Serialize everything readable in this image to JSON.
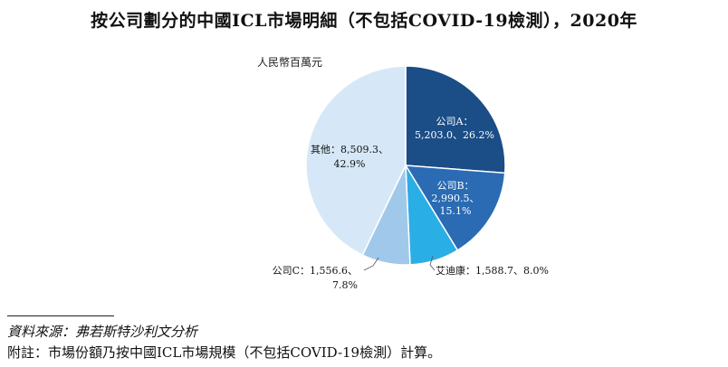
{
  "title": "按公司劃分的中國ICL市場明細（不包括COVID-19檢測），2020年",
  "unit_label": "人民幣百萬元",
  "source_note": "資料來源：弗若斯特沙利文分析",
  "remark_note": "附註：市場份額乃按中國ICL市場規模（不包括COVID-19檢測）計算。",
  "colors": {
    "company_a": "#1b4d86",
    "company_b": "#2a6bb4",
    "aidikang": "#2aaee6",
    "company_c": "#a0c8eb",
    "others": "#d6e8f7"
  },
  "chart_data": {
    "type": "pie",
    "start_angle_deg": 0,
    "direction": "clockwise",
    "slices": [
      {
        "name": "公司A",
        "value": 5203.0,
        "percent": 26.2,
        "color": "#1b4d86",
        "label_lines": [
          "公司A：",
          "5,203.0、26.2%"
        ],
        "label_color": "#ffffff",
        "label_placement": "inside"
      },
      {
        "name": "公司B",
        "value": 2990.5,
        "percent": 15.1,
        "color": "#2a6bb4",
        "label_lines": [
          "公司B：",
          "2,990.5、",
          "15.1%"
        ],
        "label_color": "#ffffff",
        "label_placement": "inside"
      },
      {
        "name": "艾迪康",
        "value": 1588.7,
        "percent": 8.0,
        "color": "#2aaee6",
        "label_lines": [
          "艾迪康：1,588.7、8.0%"
        ],
        "label_color": "#111111",
        "label_placement": "outside"
      },
      {
        "name": "公司C",
        "value": 1556.6,
        "percent": 7.8,
        "color": "#a0c8eb",
        "label_lines": [
          "公司C：1,556.6、",
          "7.8%"
        ],
        "label_color": "#111111",
        "label_placement": "outside"
      },
      {
        "name": "其他",
        "value": 8509.3,
        "percent": 42.9,
        "color": "#d6e8f7",
        "label_lines": [
          "其他：8,509.3、",
          "42.9%"
        ],
        "label_color": "#111111",
        "label_placement": "inside"
      }
    ]
  }
}
